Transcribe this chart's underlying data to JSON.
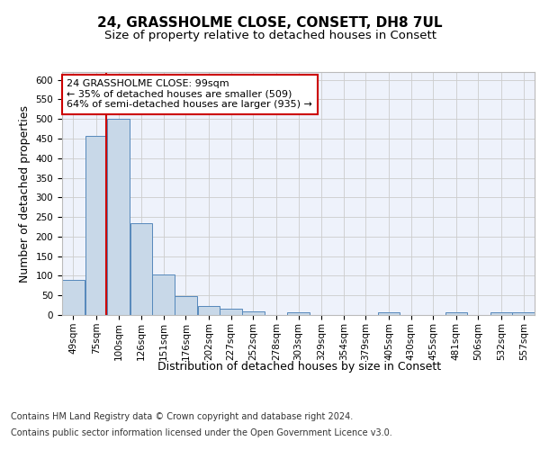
{
  "title_line1": "24, GRASSHOLME CLOSE, CONSETT, DH8 7UL",
  "title_line2": "Size of property relative to detached houses in Consett",
  "xlabel": "Distribution of detached houses by size in Consett",
  "ylabel": "Number of detached properties",
  "bins": [
    49,
    75,
    100,
    126,
    151,
    176,
    202,
    227,
    252,
    278,
    303,
    329,
    354,
    379,
    405,
    430,
    455,
    481,
    506,
    532,
    557
  ],
  "bin_width": 25,
  "bar_heights": [
    90,
    457,
    500,
    235,
    103,
    48,
    22,
    15,
    9,
    0,
    6,
    0,
    0,
    0,
    6,
    0,
    0,
    6,
    0,
    6,
    6
  ],
  "bar_color": "#c8d8e8",
  "bar_edge_color": "#5588bb",
  "property_line_x": 99,
  "property_line_color": "#cc0000",
  "annotation_line1": "24 GRASSHOLME CLOSE: 99sqm",
  "annotation_line2": "← 35% of detached houses are smaller (509)",
  "annotation_line3": "64% of semi-detached houses are larger (935) →",
  "annotation_box_color": "#ffffff",
  "annotation_box_edge_color": "#cc0000",
  "ylim": [
    0,
    620
  ],
  "yticks": [
    0,
    50,
    100,
    150,
    200,
    250,
    300,
    350,
    400,
    450,
    500,
    550,
    600
  ],
  "grid_color": "#cccccc",
  "background_color": "#eef2fb",
  "footnote_line1": "Contains HM Land Registry data © Crown copyright and database right 2024.",
  "footnote_line2": "Contains public sector information licensed under the Open Government Licence v3.0.",
  "title_fontsize": 11,
  "subtitle_fontsize": 9.5,
  "axis_label_fontsize": 9,
  "tick_fontsize": 7.5,
  "annotation_fontsize": 8,
  "footnote_fontsize": 7
}
